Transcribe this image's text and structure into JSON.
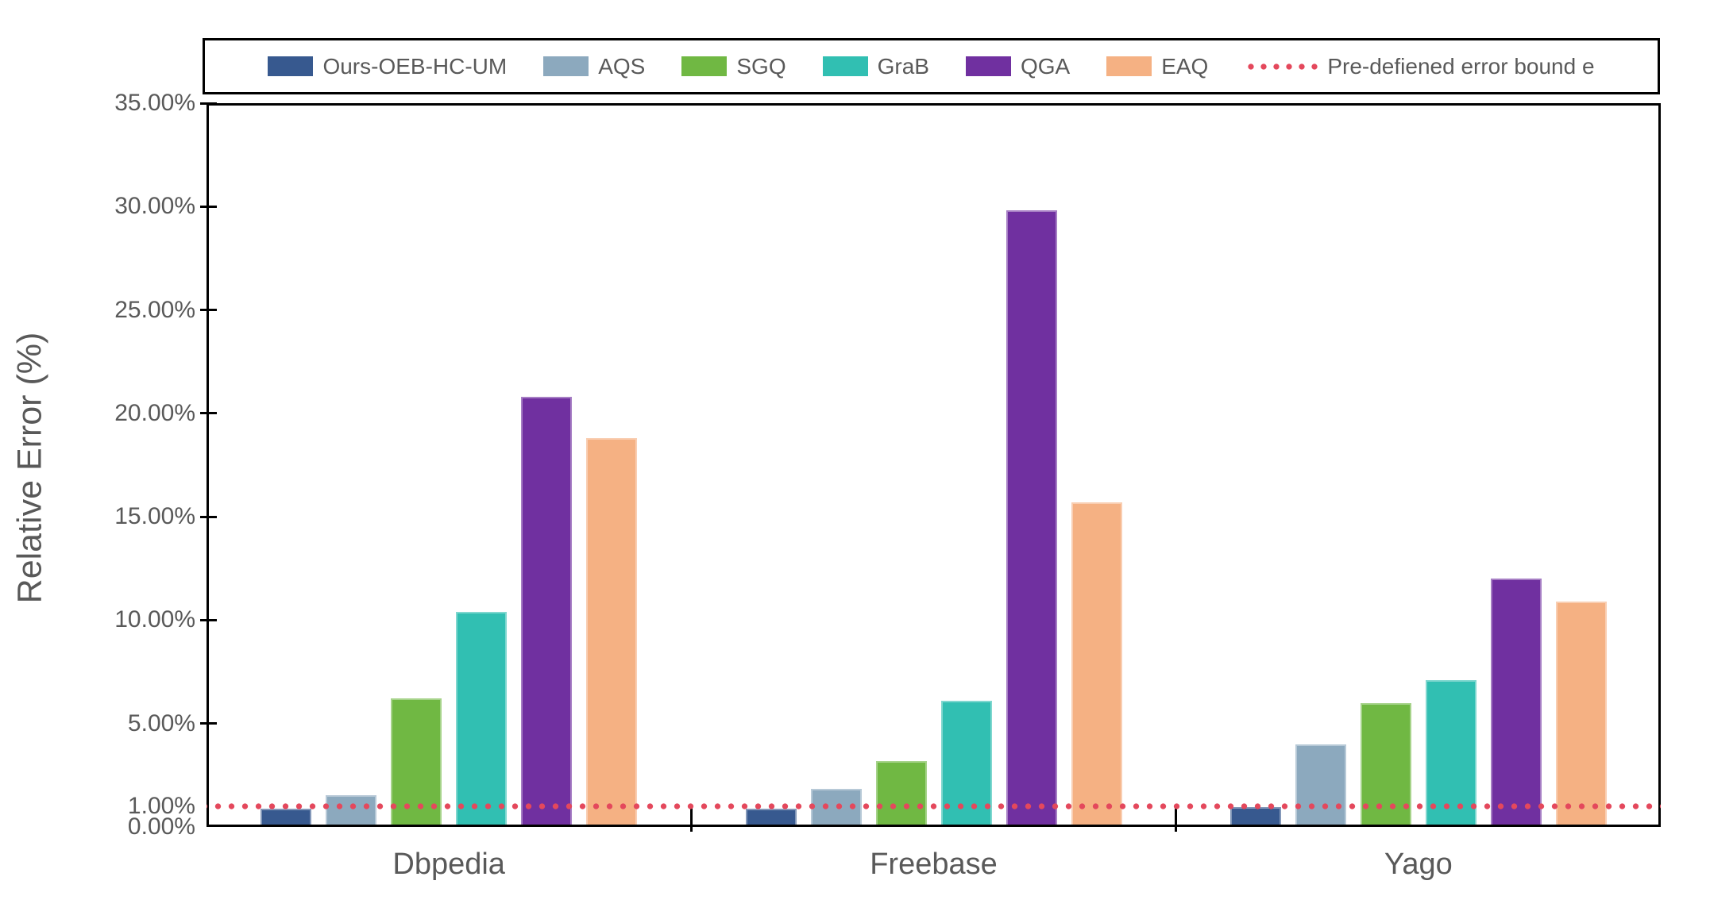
{
  "chart_data": {
    "type": "bar",
    "categories": [
      "Dbpedia",
      "Freebase",
      "Yago"
    ],
    "series": [
      {
        "name": "Ours-OEB-HC-UM",
        "color": "#37598F",
        "values": [
          0.9,
          0.9,
          0.95
        ]
      },
      {
        "name": "AQS",
        "color": "#8CA9BE",
        "values": [
          1.55,
          1.85,
          4.0
        ]
      },
      {
        "name": "SGQ",
        "color": "#70B843",
        "values": [
          6.2,
          3.2,
          6.0
        ]
      },
      {
        "name": "GraB",
        "color": "#31BFB2",
        "values": [
          10.4,
          6.1,
          7.1
        ]
      },
      {
        "name": "QGA",
        "color": "#7030A0",
        "values": [
          20.8,
          29.8,
          12.0
        ]
      },
      {
        "name": "EAQ",
        "color": "#F5B183",
        "values": [
          18.8,
          15.7,
          10.9
        ]
      }
    ],
    "reference_line": {
      "label": "Pre-defiened error bound e",
      "value": 1.0,
      "color": "#E4485C",
      "style": "dotted"
    },
    "title": "",
    "xlabel": "",
    "ylabel": "Relative Error (%)",
    "ylim": [
      0,
      35
    ],
    "ytick_values": [
      0,
      1,
      5,
      10,
      15,
      20,
      25,
      30,
      35
    ],
    "ytick_labels": [
      "0.00%",
      "1.00%",
      "5.00%",
      "10.00%",
      "15.00%",
      "20.00%",
      "25.00%",
      "30.00%",
      "35.00%"
    ],
    "legend_position": "top",
    "grid": false,
    "text_color": "#595959",
    "axis_color": "#000000"
  }
}
